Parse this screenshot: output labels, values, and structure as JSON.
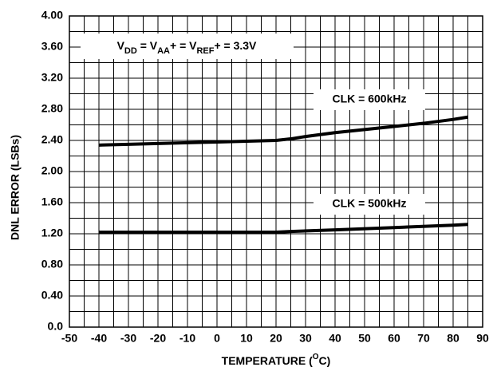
{
  "chart_data": {
    "type": "line",
    "y_label": "DNL ERROR (LSBs)",
    "x_label_parts": [
      {
        "text": "TEMPERATURE ("
      },
      {
        "text": "O",
        "sup": true
      },
      {
        "text": "C)"
      }
    ],
    "condition_parts": [
      {
        "text": "V"
      },
      {
        "text": "DD",
        "sub": true
      },
      {
        "text": " = V"
      },
      {
        "text": "AA",
        "sub": true
      },
      {
        "text": "+ = V"
      },
      {
        "text": "REF",
        "sub": true
      },
      {
        "text": "+ = 3.3V"
      }
    ],
    "xlim": [
      -50,
      90
    ],
    "xticks": [
      -50,
      -40,
      -30,
      -20,
      -10,
      0,
      10,
      20,
      30,
      40,
      50,
      60,
      70,
      80,
      90
    ],
    "ylim": [
      0,
      4
    ],
    "yticks": [
      {
        "value": 0,
        "label": "0.0"
      },
      {
        "value": 0.4,
        "label": "0.40"
      },
      {
        "value": 0.8,
        "label": "0.80"
      },
      {
        "value": 1.2,
        "label": "1.20"
      },
      {
        "value": 1.6,
        "label": "1.60"
      },
      {
        "value": 2,
        "label": "2.00"
      },
      {
        "value": 2.4,
        "label": "2.40"
      },
      {
        "value": 2.8,
        "label": "2.80"
      },
      {
        "value": 3.2,
        "label": "3.20"
      },
      {
        "value": 3.6,
        "label": "3.60"
      },
      {
        "value": 4,
        "label": "4.00"
      }
    ],
    "x_minor_grid": [
      -45,
      -35,
      -25,
      -15,
      -5,
      5,
      15,
      25,
      35,
      45,
      55,
      65,
      75,
      85
    ],
    "y_minor_grid": [
      0.2,
      0.6,
      1.0,
      1.4,
      1.8,
      2.2,
      2.6,
      3.0,
      3.4,
      3.8
    ],
    "grid": true,
    "series": [
      {
        "name": "CLK = 600kHz",
        "color": "#000000",
        "x": [
          -40,
          -30,
          -20,
          -10,
          0,
          10,
          20,
          25,
          30,
          40,
          50,
          60,
          70,
          80,
          85
        ],
        "values": [
          2.34,
          2.35,
          2.36,
          2.37,
          2.38,
          2.39,
          2.4,
          2.42,
          2.45,
          2.5,
          2.54,
          2.58,
          2.62,
          2.67,
          2.7
        ]
      },
      {
        "name": "CLK = 500kHz",
        "color": "#000000",
        "x": [
          -40,
          0,
          20,
          25,
          40,
          60,
          80,
          85
        ],
        "values": [
          1.22,
          1.22,
          1.22,
          1.23,
          1.25,
          1.28,
          1.31,
          1.32
        ]
      }
    ]
  }
}
